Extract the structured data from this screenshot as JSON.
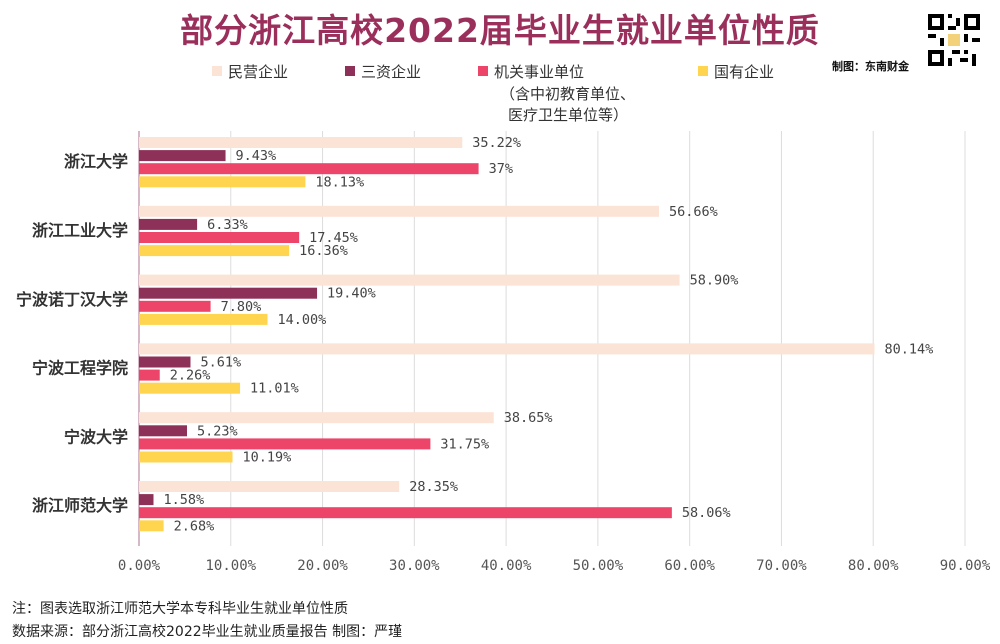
{
  "title": "部分浙江高校2022届毕业生就业单位性质",
  "credit": "制图：东南财金",
  "legend": [
    {
      "name": "民营企业",
      "color": "#fbe3d6"
    },
    {
      "name": "三资企业",
      "color": "#8e3158"
    },
    {
      "name": "机关事业单位",
      "color": "#ec4569",
      "note_line1": "（含中初教育单位、",
      "note_line2": "医疗卫生单位等）"
    },
    {
      "name": "国有企业",
      "color": "#ffd54f"
    }
  ],
  "footnote1": "注：图表选取浙江师范大学本专科毕业生就业单位性质",
  "footnote2": "数据来源：部分浙江高校2022毕业生就业质量报告  制图：严瑾",
  "chart_data": {
    "type": "bar",
    "orientation": "horizontal",
    "categories": [
      "浙江大学",
      "浙江工业大学",
      "宁波诺丁汉大学",
      "宁波工程学院",
      "宁波大学",
      "浙江师范大学"
    ],
    "series": [
      {
        "name": "民营企业",
        "values": [
          35.22,
          56.66,
          58.9,
          80.14,
          38.65,
          28.35
        ],
        "labels": [
          "35.22%",
          "56.66%",
          "58.90%",
          "80.14%",
          "38.65%",
          "28.35%"
        ]
      },
      {
        "name": "三资企业",
        "values": [
          9.43,
          6.33,
          19.4,
          5.61,
          5.23,
          1.58
        ],
        "labels": [
          "9.43%",
          "6.33%",
          "19.40%",
          "5.61%",
          "5.23%",
          "1.58%"
        ]
      },
      {
        "name": "机关事业单位",
        "values": [
          37,
          17.45,
          7.8,
          2.26,
          31.75,
          58.06
        ],
        "labels": [
          "37%",
          "17.45%",
          "7.80%",
          "2.26%",
          "31.75%",
          "58.06%"
        ]
      },
      {
        "name": "国有企业",
        "values": [
          18.13,
          16.36,
          14.0,
          11.01,
          10.19,
          2.68
        ],
        "labels": [
          "18.13%",
          "16.36%",
          "14.00%",
          "11.01%",
          "10.19%",
          "2.68%"
        ]
      }
    ],
    "x_ticks": [
      "0.00%",
      "10.00%",
      "20.00%",
      "30.00%",
      "40.00%",
      "50.00%",
      "60.00%",
      "70.00%",
      "80.00%",
      "90.00%"
    ],
    "xlim": [
      0,
      90
    ],
    "grid": true,
    "legend_position": "top"
  }
}
